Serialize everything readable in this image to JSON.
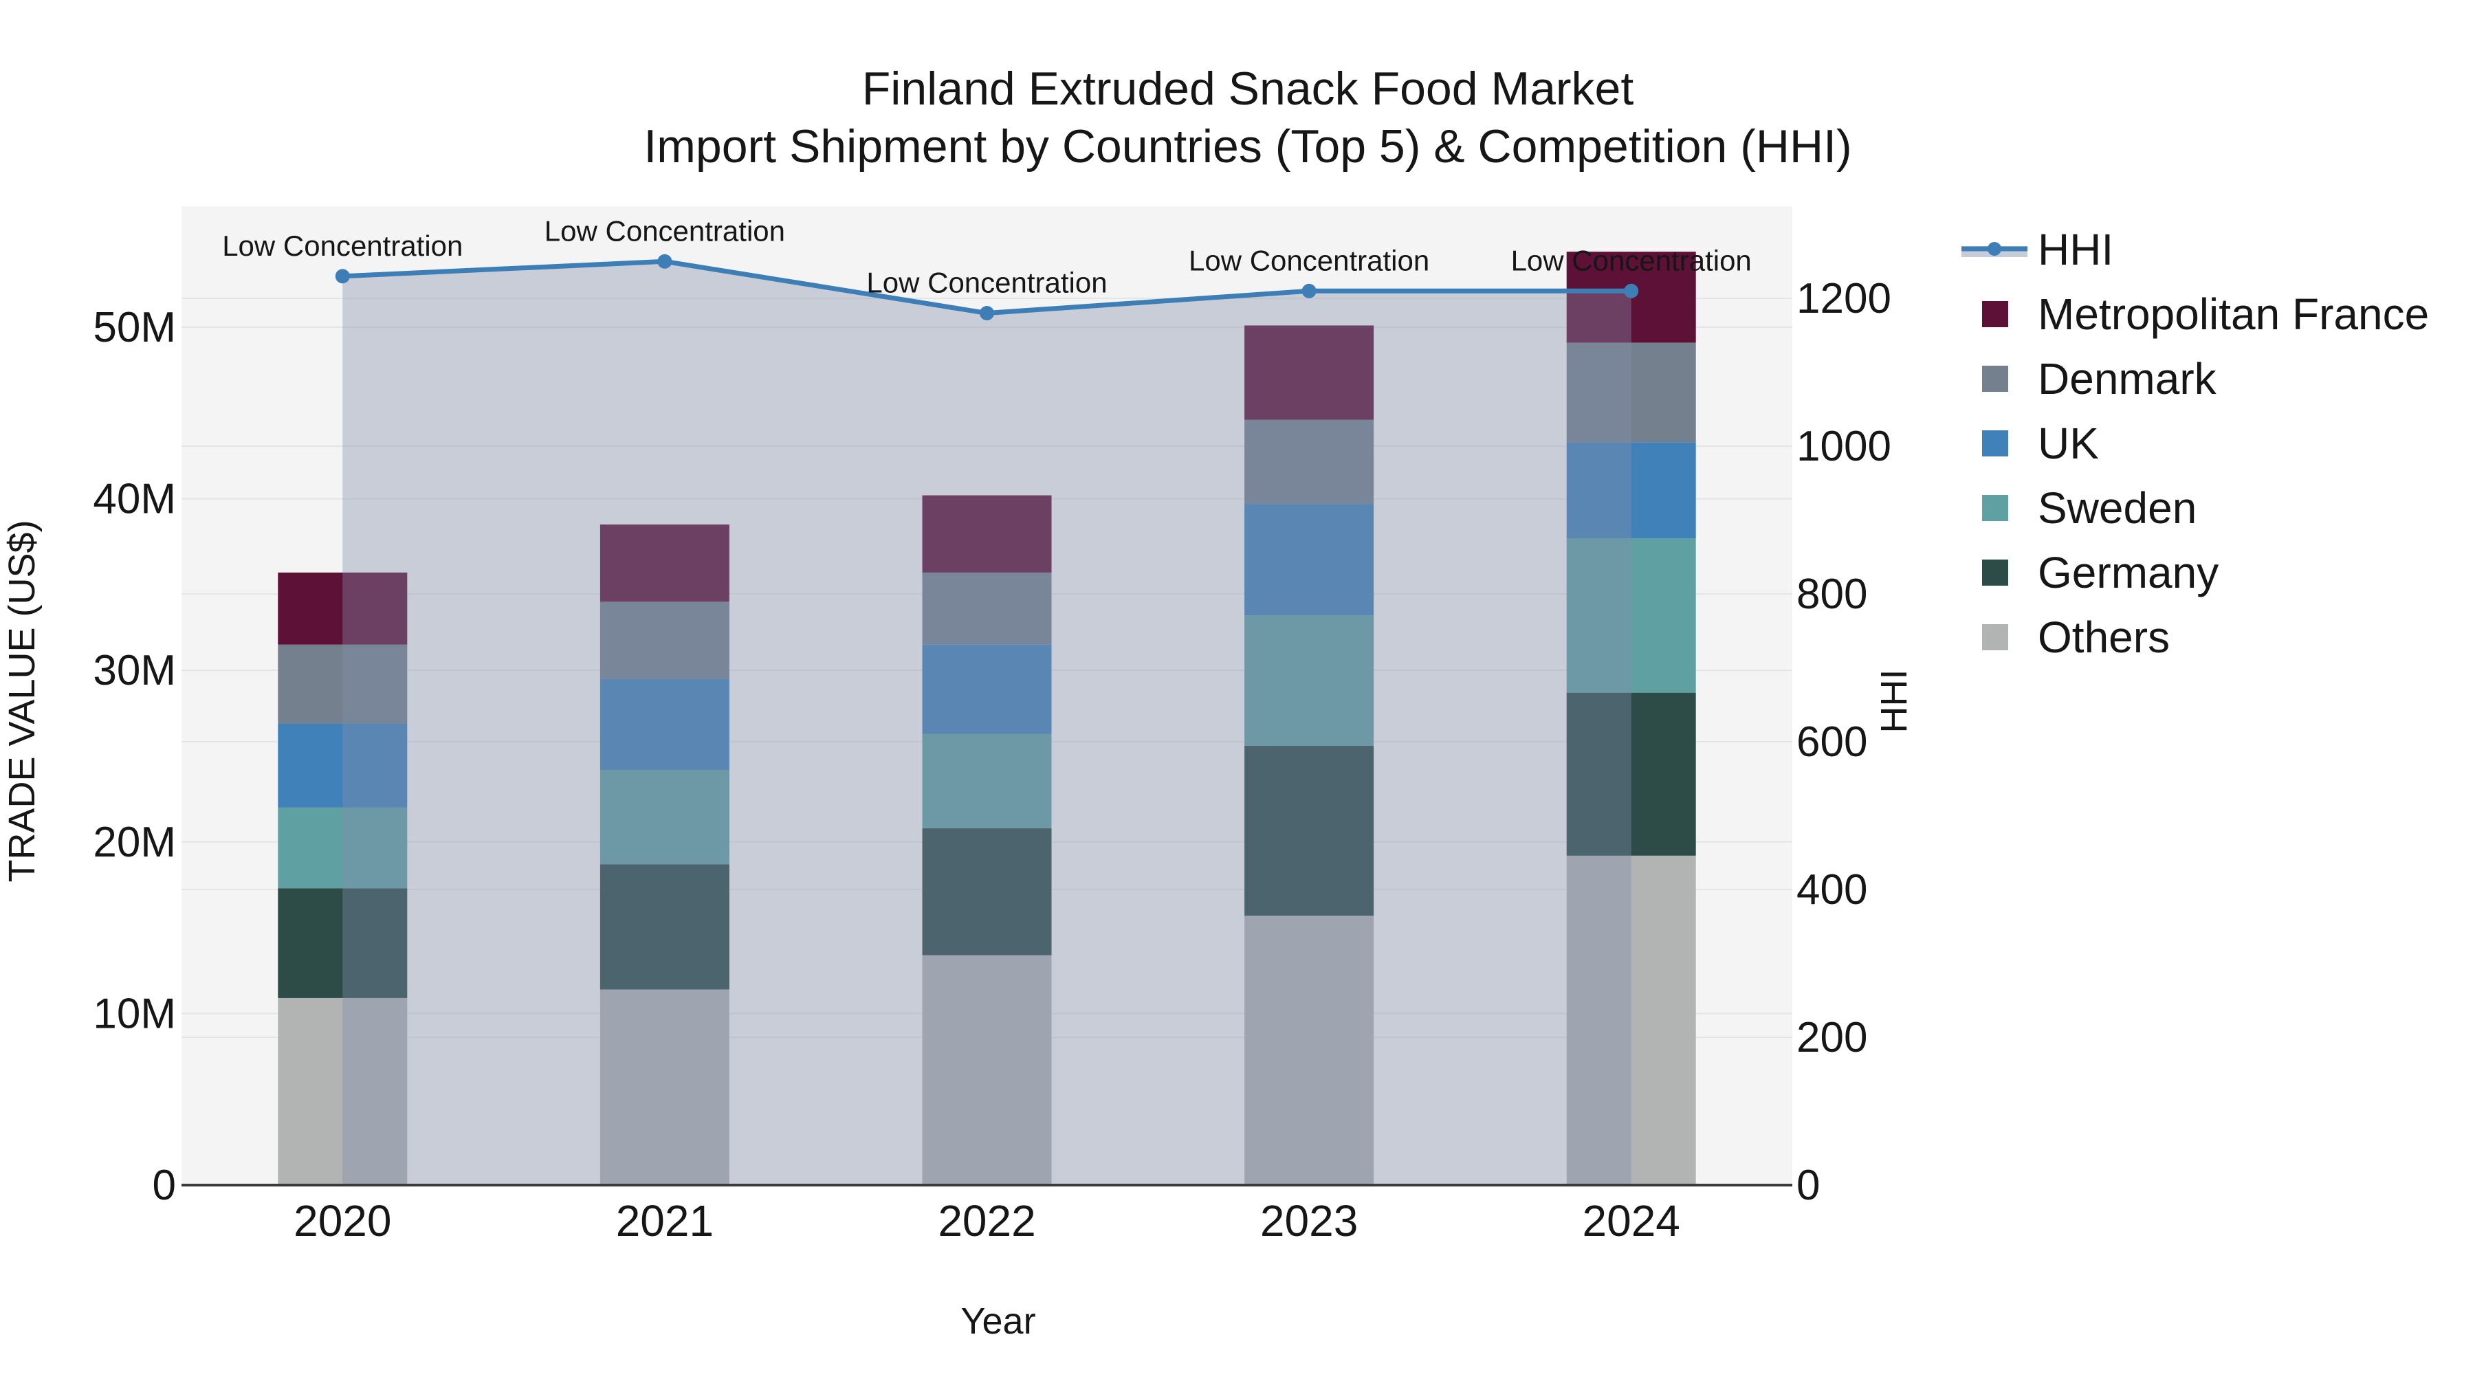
{
  "title_line1": "Finland Extruded Snack Food Market",
  "title_line2": "Import Shipment by Countries (Top 5) & Competition (HHI)",
  "chart_data": {
    "type": "bar",
    "stacked": true,
    "grid": true,
    "legend_position": "right",
    "categories": [
      "2020",
      "2021",
      "2022",
      "2023",
      "2024"
    ],
    "xlabel": "Year",
    "left_axis": {
      "label": "TRADE VALUE (US$)",
      "unit": "M US$",
      "ticks": [
        0,
        10,
        20,
        30,
        40,
        50
      ],
      "tick_labels": [
        "0",
        "10M",
        "20M",
        "30M",
        "40M",
        "50M"
      ],
      "max": 57.05
    },
    "right_axis": {
      "label": "HHI",
      "ticks": [
        0,
        200,
        400,
        600,
        800,
        1000,
        1200
      ],
      "tick_labels": [
        "0",
        "200",
        "400",
        "600",
        "800",
        "1000",
        "1200"
      ],
      "max": 1324.7
    },
    "series": [
      {
        "name": "Others",
        "color": "#b2b4b3",
        "values": [
          10.9,
          11.4,
          13.4,
          15.7,
          19.2
        ]
      },
      {
        "name": "Germany",
        "color": "#2d4b47",
        "values": [
          6.4,
          7.3,
          7.4,
          9.9,
          9.5
        ]
      },
      {
        "name": "Sweden",
        "color": "#5fa1a2",
        "values": [
          4.7,
          5.5,
          5.5,
          7.6,
          9.0
        ]
      },
      {
        "name": "UK",
        "color": "#4181b9",
        "values": [
          4.9,
          5.3,
          5.2,
          6.5,
          5.6
        ]
      },
      {
        "name": "Denmark",
        "color": "#74808e",
        "values": [
          4.6,
          4.5,
          4.2,
          4.9,
          5.8
        ]
      },
      {
        "name": "Metropolitan France",
        "color": "#5e1137",
        "values": [
          4.2,
          4.5,
          4.5,
          5.5,
          5.3
        ]
      }
    ],
    "bar_totals": [
      35.7,
      38.5,
      40.2,
      50.1,
      54.4
    ],
    "line": {
      "name": "HHI",
      "color": "#3e7eb6",
      "fill_color": "#828eac",
      "fill_opacity": 0.38,
      "values": [
        1230,
        1250,
        1180,
        1210,
        1210
      ],
      "annotation": "Low Concentration"
    },
    "legend_order": [
      "HHI",
      "Metropolitan France",
      "Denmark",
      "UK",
      "Sweden",
      "Germany",
      "Others"
    ],
    "plot_bg": "#f4f4f4",
    "grid_color": "#e5e5e5",
    "axis_line_color": "#3b3b3b"
  }
}
